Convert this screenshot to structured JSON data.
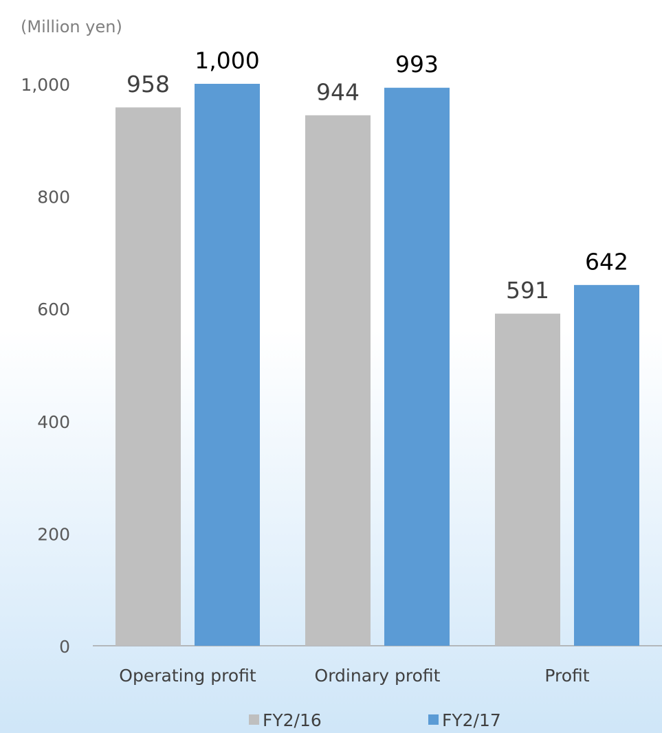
{
  "chart_data": {
    "type": "bar",
    "y_axis_label": "(Million yen)",
    "categories": [
      "Operating profit",
      "Ordinary profit",
      "Profit"
    ],
    "series": [
      {
        "name": "FY2/16",
        "color": "#bfbfbf",
        "values": [
          958,
          944,
          591
        ]
      },
      {
        "name": "FY2/17",
        "color": "#5b9bd5",
        "values": [
          1000,
          993,
          642
        ],
        "value_labels": [
          "1,000",
          "993",
          "642"
        ]
      }
    ],
    "ylim": [
      0,
      1000
    ],
    "yticks": [
      0,
      200,
      400,
      600,
      800,
      {
        "value": 1000,
        "label": "1,000"
      }
    ],
    "grid": false,
    "legend": "bottom"
  }
}
